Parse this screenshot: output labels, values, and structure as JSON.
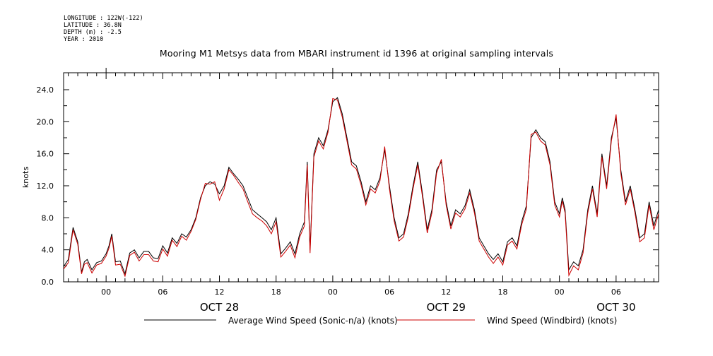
{
  "meta": {
    "longitude": "LONGITUDE : 122W(-122)",
    "latitude": "LATITUDE : 36.8N",
    "depth": "DEPTH (m) : -2.5",
    "year": "YEAR : 2010"
  },
  "chart_data": {
    "type": "line",
    "title": "Mooring M1 Metsys data from MBARI instrument id 1396 at original sampling intervals",
    "ylabel": "knots",
    "xlabel": "",
    "ylim": [
      0,
      24.0
    ],
    "xlim_hours": [
      -4.5,
      58.5
    ],
    "x_unit": "hours from 2010-10-28 00:00",
    "y_ticks": [
      "0.0",
      "4.0",
      "8.0",
      "12.0",
      "16.0",
      "20.0",
      "24.0"
    ],
    "x_ticks": [
      {
        "hour": 0,
        "label": "00"
      },
      {
        "hour": 6,
        "label": "06"
      },
      {
        "hour": 12,
        "label": "12"
      },
      {
        "hour": 18,
        "label": "18"
      },
      {
        "hour": 24,
        "label": "00"
      },
      {
        "hour": 30,
        "label": "06"
      },
      {
        "hour": 36,
        "label": "12"
      },
      {
        "hour": 42,
        "label": "18"
      },
      {
        "hour": 48,
        "label": "00"
      },
      {
        "hour": 54,
        "label": "06"
      }
    ],
    "date_labels": [
      {
        "hour": 12,
        "label": "OCT 28"
      },
      {
        "hour": 36,
        "label": "OCT 29"
      },
      {
        "hour": 54,
        "label": "OCT 30"
      }
    ],
    "x": [
      -4.5,
      -4,
      -3.5,
      -3,
      -2.6,
      -2.3,
      -2,
      -1.5,
      -1,
      -0.5,
      0,
      0.3,
      0.6,
      1,
      1.5,
      2,
      2.5,
      3,
      3.5,
      4,
      4.5,
      5,
      5.5,
      6,
      6.5,
      7,
      7.5,
      8,
      8.5,
      9,
      9.5,
      10,
      10.5,
      11,
      11.5,
      12,
      12.5,
      13,
      13.5,
      14,
      14.5,
      15,
      15.5,
      16,
      16.5,
      17,
      17.5,
      18,
      18.5,
      19,
      19.5,
      20,
      20.5,
      21,
      21.3,
      21.6,
      22,
      22.5,
      23,
      23.5,
      24,
      24.5,
      25,
      25.5,
      26,
      26.5,
      27,
      27.5,
      28,
      28.5,
      29,
      29.5,
      30,
      30.5,
      31,
      31.5,
      32,
      32.5,
      33,
      33.5,
      34,
      34.5,
      35,
      35.5,
      36,
      36.5,
      37,
      37.5,
      38,
      38.5,
      39,
      39.5,
      40,
      40.5,
      41,
      41.5,
      42,
      42.5,
      43,
      43.5,
      44,
      44.5,
      45,
      45.5,
      46,
      46.5,
      47,
      47.5,
      48,
      48.3,
      48.6,
      49,
      49.5,
      50,
      50.5,
      51,
      51.5,
      52,
      52.5,
      53,
      53.5,
      54,
      54.5,
      55,
      55.5,
      56,
      56.5,
      57,
      57.5,
      58,
      58.5
    ],
    "series": [
      {
        "name": "Average Wind Speed (Sonic-n/a) (knots)",
        "color": "#000000",
        "values": [
          1.9,
          2.8,
          6.8,
          5.0,
          1.2,
          2.5,
          2.8,
          1.5,
          2.4,
          2.6,
          3.5,
          4.5,
          6.0,
          2.5,
          2.6,
          1.0,
          3.6,
          4.0,
          3.0,
          3.8,
          3.8,
          3.0,
          2.9,
          4.5,
          3.6,
          5.5,
          4.8,
          6.0,
          5.6,
          6.5,
          8.0,
          10.5,
          12.0,
          12.5,
          12.2,
          11.0,
          12.0,
          14.3,
          13.5,
          12.8,
          12.0,
          10.5,
          9.0,
          8.5,
          8.0,
          7.5,
          6.5,
          8.0,
          3.5,
          4.2,
          5.0,
          3.5,
          6.0,
          7.5,
          15.0,
          4.0,
          16.0,
          18.0,
          17.0,
          19.0,
          22.5,
          23.0,
          21.0,
          18.0,
          15.0,
          14.5,
          12.5,
          10.0,
          12.0,
          11.5,
          13.0,
          16.5,
          12.0,
          8.0,
          5.5,
          6.0,
          8.5,
          12.0,
          15.0,
          11.0,
          6.5,
          9.0,
          14.0,
          15.0,
          10.0,
          7.0,
          9.0,
          8.5,
          9.5,
          11.5,
          9.0,
          5.5,
          4.5,
          3.5,
          2.8,
          3.5,
          2.5,
          5.0,
          5.5,
          4.5,
          7.5,
          9.5,
          18.0,
          19.0,
          18.0,
          17.5,
          15.0,
          10.0,
          8.5,
          10.5,
          9.0,
          1.5,
          2.5,
          2.0,
          4.0,
          9.0,
          12.0,
          8.5,
          16.0,
          12.0,
          18.0,
          20.5,
          14.0,
          10.0,
          12.0,
          9.0,
          5.5,
          6.0,
          10.0,
          7.0,
          9.0
        ]
      },
      {
        "name": "Wind Speed (Windbird) (knots)",
        "color": "#cc0000",
        "values": [
          1.6,
          2.4,
          6.5,
          4.7,
          1.0,
          2.2,
          2.4,
          1.1,
          2.1,
          2.3,
          3.2,
          4.2,
          5.7,
          2.1,
          2.2,
          0.7,
          3.3,
          3.7,
          2.6,
          3.4,
          3.4,
          2.6,
          2.5,
          4.1,
          3.2,
          5.2,
          4.4,
          5.7,
          5.2,
          6.3,
          7.8,
          10.3,
          12.3,
          12.2,
          12.5,
          10.2,
          11.6,
          14.0,
          13.3,
          12.4,
          11.6,
          10.0,
          8.5,
          8.0,
          7.6,
          7.0,
          6.0,
          7.5,
          3.1,
          3.8,
          4.6,
          3.0,
          5.6,
          7.0,
          14.6,
          3.6,
          15.6,
          17.6,
          16.6,
          18.7,
          22.9,
          22.7,
          20.6,
          17.6,
          14.6,
          14.1,
          12.1,
          9.6,
          11.6,
          11.1,
          12.6,
          16.9,
          11.6,
          7.6,
          5.1,
          5.6,
          8.1,
          11.6,
          14.6,
          10.6,
          6.1,
          8.6,
          13.6,
          15.3,
          9.6,
          6.6,
          8.6,
          8.1,
          9.1,
          11.1,
          8.6,
          5.1,
          4.1,
          3.1,
          2.3,
          3.1,
          2.1,
          4.6,
          5.1,
          4.1,
          7.1,
          9.1,
          18.4,
          18.7,
          17.6,
          17.1,
          14.6,
          9.6,
          8.1,
          10.1,
          8.6,
          0.8,
          2.0,
          1.5,
          3.6,
          8.6,
          11.6,
          8.1,
          15.6,
          11.6,
          17.6,
          20.9,
          13.6,
          9.6,
          11.6,
          8.6,
          5.0,
          5.5,
          9.6,
          6.5,
          8.5
        ]
      }
    ],
    "grid": false,
    "legend": "bottom"
  }
}
